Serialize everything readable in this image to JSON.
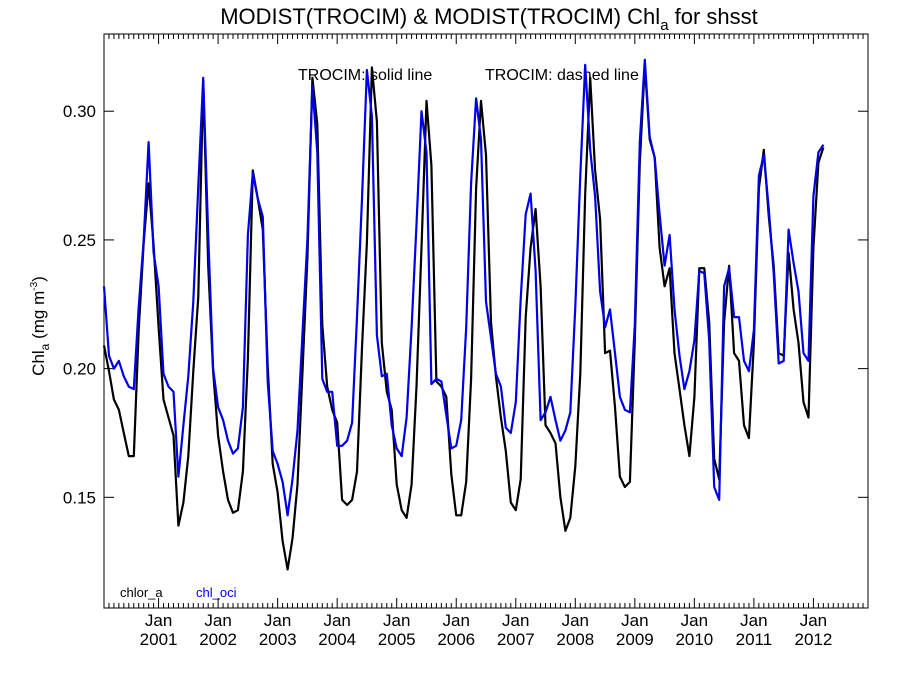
{
  "chart_data": {
    "type": "line",
    "title": {
      "prefix": "MODIST(TROCIM) & MODIST(TROCIM)  Chl",
      "subscript": "a",
      "suffix": " for shsst"
    },
    "annotation": {
      "solid": "TROCIM: solid line",
      "dashed": "TROCIM: dashed line"
    },
    "ylabel": {
      "main": "Chl",
      "sub": "a",
      "unit_open": " (mg m",
      "unit_sup": "-3",
      "unit_close": ")"
    },
    "ylim": [
      0.107,
      0.33
    ],
    "y_ticks": [
      "0.15",
      "0.20",
      "0.25",
      "0.30"
    ],
    "x_range": [
      "2000-02",
      "2012-12"
    ],
    "x_tick_month": "Jan",
    "x_tick_years": [
      "2001",
      "2002",
      "2003",
      "2004",
      "2005",
      "2006",
      "2007",
      "2008",
      "2009",
      "2010",
      "2011",
      "2012"
    ],
    "grid": false,
    "series": [
      {
        "name": "chlor_a",
        "color": "#000000",
        "start": "2000-02",
        "values": [
          0.209,
          0.199,
          0.188,
          0.184,
          0.175,
          0.166,
          0.166,
          0.215,
          0.249,
          0.272,
          0.248,
          0.216,
          0.188,
          0.181,
          0.174,
          0.139,
          0.148,
          0.166,
          0.199,
          0.228,
          0.312,
          0.24,
          0.199,
          0.174,
          0.16,
          0.149,
          0.144,
          0.145,
          0.16,
          0.204,
          0.277,
          0.266,
          0.254,
          0.201,
          0.163,
          0.152,
          0.133,
          0.122,
          0.134,
          0.155,
          0.198,
          0.243,
          0.313,
          0.295,
          0.217,
          0.193,
          0.184,
          0.179,
          0.149,
          0.147,
          0.149,
          0.16,
          0.208,
          0.249,
          0.317,
          0.296,
          0.21,
          0.191,
          0.184,
          0.155,
          0.145,
          0.142,
          0.155,
          0.193,
          0.247,
          0.304,
          0.279,
          0.195,
          0.193,
          0.189,
          0.159,
          0.143,
          0.143,
          0.156,
          0.196,
          0.27,
          0.304,
          0.283,
          0.218,
          0.197,
          0.181,
          0.168,
          0.148,
          0.145,
          0.157,
          0.22,
          0.247,
          0.262,
          0.232,
          0.178,
          0.175,
          0.171,
          0.15,
          0.137,
          0.142,
          0.162,
          0.198,
          0.268,
          0.313,
          0.277,
          0.258,
          0.206,
          0.207,
          0.185,
          0.158,
          0.154,
          0.156,
          0.211,
          0.28,
          0.318,
          0.289,
          0.282,
          0.247,
          0.232,
          0.239,
          0.206,
          0.192,
          0.178,
          0.166,
          0.189,
          0.239,
          0.239,
          0.218,
          0.165,
          0.157,
          0.218,
          0.24,
          0.206,
          0.203,
          0.178,
          0.173,
          0.21,
          0.27,
          0.285,
          0.259,
          0.24,
          0.206,
          0.205,
          0.245,
          0.223,
          0.21,
          0.187,
          0.181,
          0.247,
          0.28,
          0.286
        ]
      },
      {
        "name": "chl_oci",
        "color": "#0000e6",
        "start": "2000-02",
        "values": [
          0.232,
          0.205,
          0.2,
          0.203,
          0.197,
          0.193,
          0.192,
          0.224,
          0.25,
          0.288,
          0.245,
          0.232,
          0.198,
          0.193,
          0.191,
          0.158,
          0.178,
          0.197,
          0.226,
          0.271,
          0.313,
          0.252,
          0.2,
          0.185,
          0.18,
          0.172,
          0.167,
          0.169,
          0.185,
          0.252,
          0.276,
          0.266,
          0.259,
          0.195,
          0.168,
          0.163,
          0.156,
          0.143,
          0.157,
          0.176,
          0.213,
          0.25,
          0.31,
          0.284,
          0.196,
          0.191,
          0.191,
          0.17,
          0.17,
          0.172,
          0.179,
          0.22,
          0.266,
          0.316,
          0.298,
          0.213,
          0.197,
          0.198,
          0.178,
          0.169,
          0.166,
          0.181,
          0.216,
          0.256,
          0.3,
          0.284,
          0.194,
          0.196,
          0.195,
          0.182,
          0.169,
          0.17,
          0.18,
          0.216,
          0.272,
          0.305,
          0.289,
          0.226,
          0.212,
          0.198,
          0.193,
          0.177,
          0.175,
          0.187,
          0.227,
          0.26,
          0.268,
          0.238,
          0.18,
          0.183,
          0.189,
          0.18,
          0.172,
          0.176,
          0.183,
          0.224,
          0.275,
          0.318,
          0.285,
          0.267,
          0.23,
          0.216,
          0.223,
          0.206,
          0.189,
          0.184,
          0.183,
          0.217,
          0.288,
          0.32,
          0.29,
          0.282,
          0.26,
          0.24,
          0.252,
          0.223,
          0.205,
          0.192,
          0.199,
          0.211,
          0.238,
          0.237,
          0.211,
          0.154,
          0.149,
          0.232,
          0.239,
          0.22,
          0.22,
          0.203,
          0.199,
          0.215,
          0.275,
          0.283,
          0.262,
          0.237,
          0.202,
          0.203,
          0.254,
          0.241,
          0.23,
          0.206,
          0.203,
          0.267,
          0.284,
          0.287
        ]
      }
    ]
  }
}
